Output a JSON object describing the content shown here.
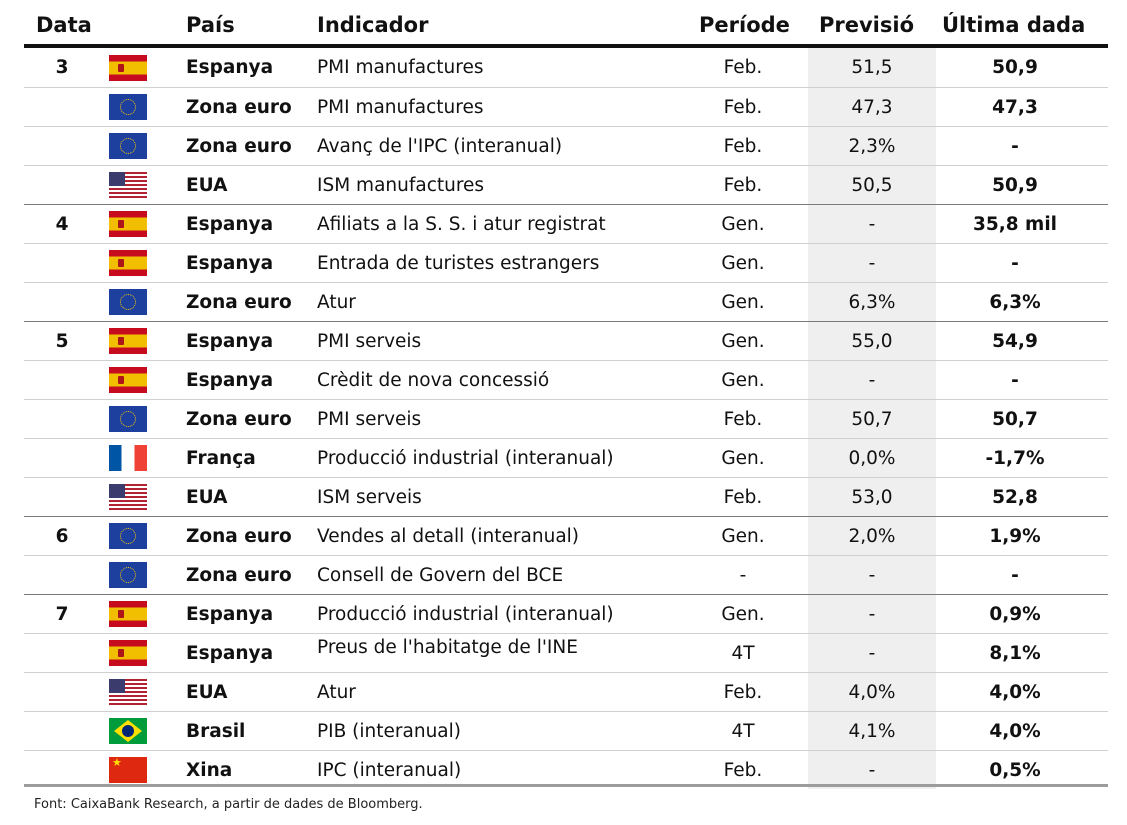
{
  "headers": {
    "date": "Data",
    "country": "País",
    "indicator": "Indicador",
    "period": "Període",
    "forecast": "Previsió",
    "last": "Última dada"
  },
  "rows": [
    {
      "date": "3",
      "flag": "es",
      "country": "Espanya",
      "indicator": "PMI manufactures",
      "period": "Feb.",
      "forecast": "51,5",
      "last": "50,9"
    },
    {
      "date": "",
      "flag": "eu",
      "country": "Zona euro",
      "indicator": "PMI manufactures",
      "period": "Feb.",
      "forecast": "47,3",
      "last": "47,3"
    },
    {
      "date": "",
      "flag": "eu",
      "country": "Zona euro",
      "indicator": "Avanç de l'IPC (interanual)",
      "period": "Feb.",
      "forecast": "2,3%",
      "last": "-"
    },
    {
      "date": "",
      "flag": "us",
      "country": "EUA",
      "indicator": "ISM manufactures",
      "period": "Feb.",
      "forecast": "50,5",
      "last": "50,9"
    },
    {
      "date": "4",
      "flag": "es",
      "country": "Espanya",
      "indicator": "Afiliats a la S. S. i atur registrat",
      "period": "Gen.",
      "forecast": "-",
      "last": "35,8 mil"
    },
    {
      "date": "",
      "flag": "es",
      "country": "Espanya",
      "indicator": "Entrada de turistes estrangers",
      "period": "Gen.",
      "forecast": "-",
      "last": "-"
    },
    {
      "date": "",
      "flag": "eu",
      "country": "Zona euro",
      "indicator": "Atur",
      "period": "Gen.",
      "forecast": "6,3%",
      "last": "6,3%"
    },
    {
      "date": "5",
      "flag": "es",
      "country": "Espanya",
      "indicator": "PMI serveis",
      "period": "Gen.",
      "forecast": "55,0",
      "last": "54,9"
    },
    {
      "date": "",
      "flag": "es",
      "country": "Espanya",
      "indicator": "Crèdit de nova concessió",
      "period": "Gen.",
      "forecast": "-",
      "last": "-"
    },
    {
      "date": "",
      "flag": "eu",
      "country": "Zona euro",
      "indicator": "PMI serveis",
      "period": "Feb.",
      "forecast": "50,7",
      "last": "50,7"
    },
    {
      "date": "",
      "flag": "fr",
      "country": "França",
      "indicator": "Producció industrial (interanual)",
      "period": "Gen.",
      "forecast": "0,0%",
      "last": "-1,7%"
    },
    {
      "date": "",
      "flag": "us",
      "country": "EUA",
      "indicator": "ISM serveis",
      "period": "Feb.",
      "forecast": "53,0",
      "last": "52,8"
    },
    {
      "date": "6",
      "flag": "eu",
      "country": "Zona euro",
      "indicator": "Vendes al detall (interanual)",
      "period": "Gen.",
      "forecast": "2,0%",
      "last": "1,9%"
    },
    {
      "date": "",
      "flag": "eu",
      "country": "Zona euro",
      "indicator": "Consell de Govern del BCE",
      "period": "-",
      "forecast": "-",
      "last": "-"
    },
    {
      "date": "7",
      "flag": "es",
      "country": "Espanya",
      "indicator": "Producció industrial (interanual)",
      "period": "Gen.",
      "forecast": "-",
      "last": "0,9%"
    },
    {
      "date": "",
      "flag": "es",
      "country": "Espanya",
      "indicator": "Preus de l'habitatge de l'INE",
      "period": "4T",
      "forecast": "-",
      "last": "8,1%",
      "clipped": true
    },
    {
      "date": "",
      "flag": "us",
      "country": "EUA",
      "indicator": "Atur",
      "period": "Feb.",
      "forecast": "4,0%",
      "last": "4,0%"
    },
    {
      "date": "",
      "flag": "br",
      "country": "Brasil",
      "indicator": "PIB (interanual)",
      "period": "4T",
      "forecast": "4,1%",
      "last": "4,0%"
    },
    {
      "date": "",
      "flag": "cn",
      "country": "Xina",
      "indicator": "IPC (interanual)",
      "period": "Feb.",
      "forecast": "-",
      "last": "0,5%"
    }
  ],
  "flag_icons": {
    "es": "spain-flag-icon",
    "eu": "eu-flag-icon",
    "us": "usa-flag-icon",
    "fr": "france-flag-icon",
    "br": "brazil-flag-icon",
    "cn": "china-flag-icon"
  },
  "source": "Font: CaixaBank Research, a partir de dades de Bloomberg."
}
